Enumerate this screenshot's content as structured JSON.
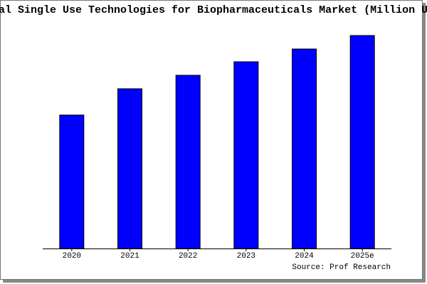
{
  "chart_data": {
    "type": "bar",
    "title": "al Single Use Technologies for Biopharmaceuticals Market (Million U",
    "categories": [
      "2020",
      "2021",
      "2022",
      "2023",
      "2024",
      "2025e"
    ],
    "values": [
      188,
      225,
      244,
      263,
      281,
      300
    ],
    "color": "#0000ff",
    "source": "Source: Prof Research"
  }
}
